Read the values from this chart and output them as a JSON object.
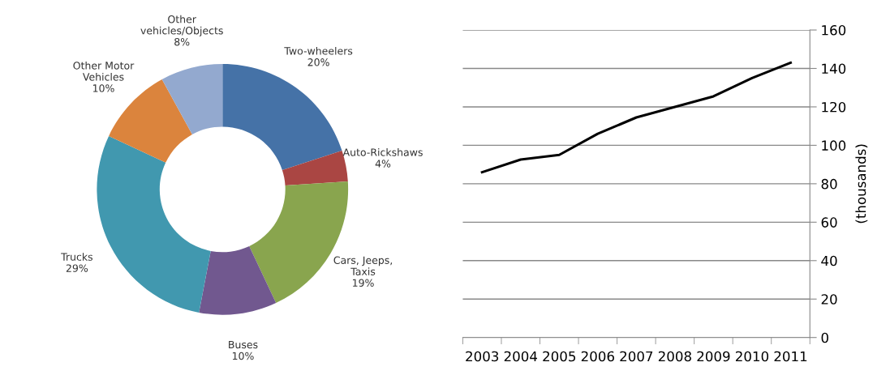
{
  "chart_data": [
    {
      "type": "donut",
      "categories": [
        "Two-wheelers",
        "Auto-Rickshaws",
        "Cars, Jeeps,\nTaxis",
        "Buses",
        "Trucks",
        "Other Motor\nVehicles",
        "Other\nvehicles/Objects"
      ],
      "values": [
        20,
        4,
        19,
        10,
        29,
        10,
        8
      ],
      "value_labels": [
        "20%",
        "4%",
        "19%",
        "10%",
        "29%",
        "10%",
        "8%"
      ],
      "colors": [
        "#4572a7",
        "#aa4643",
        "#89a54e",
        "#71588f",
        "#4198af",
        "#db843d",
        "#93a9cf"
      ]
    },
    {
      "type": "line",
      "categories": [
        "2003",
        "2004",
        "2005",
        "2006",
        "2007",
        "2008",
        "2009",
        "2010",
        "2011"
      ],
      "series": [
        {
          "color": "#000000",
          "values": [
            86,
            92.6,
            95,
            106,
            114.5,
            120,
            125.5,
            135,
            143
          ]
        }
      ],
      "ylabel": "(thousands)",
      "ylim": [
        0,
        160
      ],
      "yticks": [
        0,
        20,
        40,
        60,
        80,
        100,
        120,
        140,
        160
      ],
      "grid": "y",
      "marker": "none",
      "line_style": "solid"
    }
  ]
}
